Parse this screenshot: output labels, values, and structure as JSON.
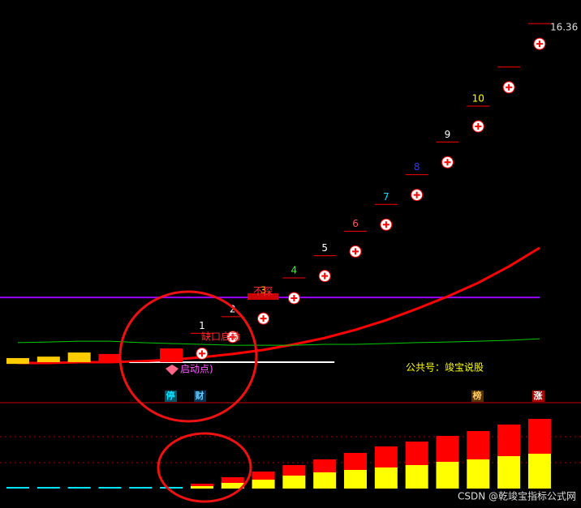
{
  "chart_data": [
    {
      "type": "candlestick",
      "categories": [
        null,
        null,
        null,
        null,
        null,
        null,
        null,
        null,
        null,
        null,
        null,
        null,
        null,
        null,
        null,
        null,
        null,
        null
      ],
      "ylim": [
        3.36,
        17.17
      ],
      "open": [
        4.69,
        4.75,
        4.75,
        4.75,
        4.72,
        4.75,
        null,
        null,
        null,
        null,
        null,
        null,
        null,
        null,
        null,
        null,
        null,
        null
      ],
      "close": [
        4.89,
        4.94,
        5.08,
        5.03,
        4.75,
        5.22,
        null,
        null,
        null,
        null,
        null,
        null,
        null,
        null,
        null,
        null,
        null,
        null
      ],
      "candle_colors": [
        "#ffcc00",
        "#ffcc00",
        "#ffcc00",
        "#ff0000",
        "#ffffff",
        "#ff0000",
        null,
        null,
        null,
        null,
        null,
        null,
        null,
        null,
        null,
        null,
        null,
        null
      ],
      "highs": [
        null,
        null,
        null,
        null,
        null,
        null,
        5.74,
        6.31,
        6.94,
        7.64,
        8.4,
        9.24,
        10.16,
        11.18,
        12.3,
        13.53,
        14.87,
        16.36
      ],
      "high_color": "#ff0000",
      "lines": [
        {
          "color": "#ff0000",
          "values": [
            4.72,
            4.72,
            4.75,
            4.75,
            4.78,
            4.83,
            4.92,
            5.03,
            5.17,
            5.36,
            5.58,
            5.86,
            6.19,
            6.58,
            7.0,
            7.47,
            8.03,
            8.67
          ]
        },
        {
          "color": "#00cc00",
          "values": [
            5.42,
            5.44,
            5.47,
            5.47,
            5.42,
            5.39,
            5.36,
            5.33,
            5.33,
            5.33,
            5.36,
            5.36,
            5.39,
            5.42,
            5.44,
            5.47,
            5.5,
            5.55
          ]
        }
      ],
      "levels": [
        {
          "value": 6.97,
          "color": "#9900ff"
        },
        {
          "value": 4.75,
          "color": "#ffffff",
          "span": [
            4,
            10
          ]
        }
      ],
      "day_labels": [
        {
          "category": 6,
          "text": "1",
          "color": "#ffffff"
        },
        {
          "category": 7,
          "text": "2",
          "color": "#ffffff"
        },
        {
          "category": 8,
          "text": "3",
          "color": "#ffcc00"
        },
        {
          "category": 9,
          "text": "4",
          "color": "#33ff33"
        },
        {
          "category": 10,
          "text": "5",
          "color": "#ffffff"
        },
        {
          "category": 11,
          "text": "6",
          "color": "#ff5555"
        },
        {
          "category": 12,
          "text": "7",
          "color": "#00e5ff"
        },
        {
          "category": 13,
          "text": "8",
          "color": "#3333ff"
        },
        {
          "category": 14,
          "text": "9",
          "color": "#ffffff"
        },
        {
          "category": 15,
          "text": "10",
          "color": "#ffff00"
        }
      ]
    },
    {
      "type": "bar",
      "stacked": true,
      "categories": [
        null,
        null,
        null,
        null,
        null,
        null,
        null,
        null,
        null,
        null,
        null,
        null,
        null,
        null,
        null,
        null,
        null,
        null
      ],
      "ylim": [
        0,
        100
      ],
      "grid_lines": [
        32,
        64
      ],
      "series": [
        {
          "color": "#00e5ff",
          "values": [
            2,
            2,
            2,
            2,
            2,
            2,
            null,
            null,
            null,
            null,
            null,
            null,
            null,
            null,
            null,
            null,
            null,
            null
          ]
        },
        {
          "color": "#ffff00",
          "values": [
            null,
            null,
            null,
            null,
            null,
            null,
            3,
            7,
            11,
            16,
            20,
            23,
            26,
            29,
            33,
            36,
            40,
            43
          ]
        },
        {
          "color": "#ff0000",
          "values": [
            null,
            null,
            null,
            null,
            null,
            null,
            3,
            7,
            10,
            13,
            16,
            21,
            26,
            29,
            32,
            35,
            39,
            43
          ]
        }
      ]
    }
  ],
  "annotations": {
    "no_probe": "不探",
    "gap_start": "缺口启动",
    "start_point": "启动点)",
    "account": "公共号：竣宝说股",
    "tag_halt": "停",
    "tag_finance": "财",
    "tag_rank": "榜",
    "tag_rise": "涨",
    "watermark": "CSDN @乾竣宝指标公式网"
  }
}
